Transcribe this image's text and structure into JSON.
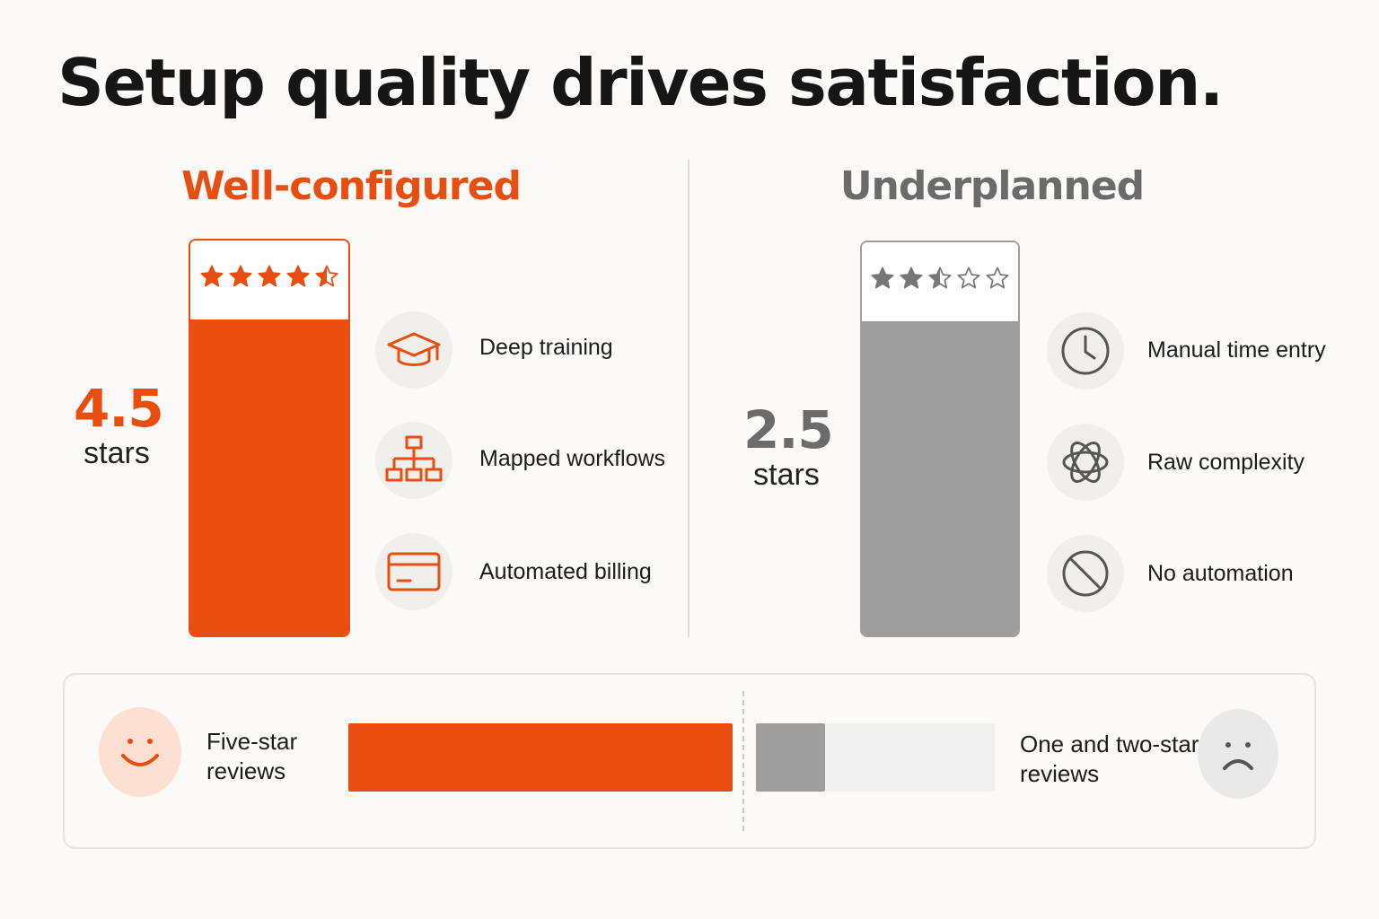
{
  "title": "Setup quality drives satisfaction.",
  "colors": {
    "accent": "#e84e0f",
    "neutral": "#9e9e9e",
    "track": "#f0f0f0",
    "ink": "#161616"
  },
  "chart_data": {
    "type": "bar",
    "categories": [
      "Well-configured",
      "Underplanned"
    ],
    "series": [
      {
        "values": [
          4.5,
          2.5
        ]
      }
    ],
    "ylim": [
      0,
      5
    ],
    "score_label": "stars",
    "factors": {
      "well_configured": [
        {
          "icon": "graduation-cap-icon",
          "label": "Deep training"
        },
        {
          "icon": "workflow-hierarchy-icon",
          "label": "Mapped workflows"
        },
        {
          "icon": "credit-card-icon",
          "label": "Automated billing"
        }
      ],
      "underplanned": [
        {
          "icon": "clock-icon",
          "label": "Manual time entry"
        },
        {
          "icon": "tangled-knot-icon",
          "label": "Raw complexity"
        },
        {
          "icon": "prohibited-icon",
          "label": "No automation"
        }
      ]
    },
    "review_split": {
      "positive_label": "Five-star reviews",
      "negative_label": "One and two-star reviews",
      "positive_share": 0.59,
      "negative_share": 0.29
    }
  },
  "display": {
    "good_score": "4.5",
    "bad_score": "2.5",
    "positive_line1": "Five-star",
    "positive_line2": "reviews",
    "negative_line1": "One and two-star",
    "negative_line2": "reviews",
    "positive_face": "smiling-face-icon",
    "negative_face": "frowning-face-icon"
  }
}
